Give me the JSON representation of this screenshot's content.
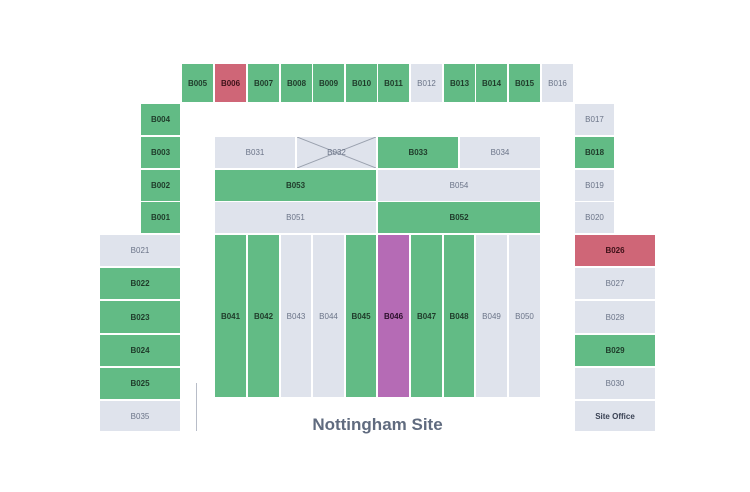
{
  "site": {
    "title": "Nottingham Site"
  },
  "units": [
    {
      "id": "B005",
      "status": "occupied"
    },
    {
      "id": "B006",
      "status": "reserved"
    },
    {
      "id": "B007",
      "status": "occupied"
    },
    {
      "id": "B008",
      "status": "occupied"
    },
    {
      "id": "B009",
      "status": "occupied"
    },
    {
      "id": "B010",
      "status": "occupied"
    },
    {
      "id": "B011",
      "status": "occupied"
    },
    {
      "id": "B012",
      "status": "available"
    },
    {
      "id": "B013",
      "status": "occupied"
    },
    {
      "id": "B014",
      "status": "occupied"
    },
    {
      "id": "B015",
      "status": "occupied"
    },
    {
      "id": "B016",
      "status": "available"
    },
    {
      "id": "B004",
      "status": "occupied"
    },
    {
      "id": "B003",
      "status": "occupied"
    },
    {
      "id": "B002",
      "status": "occupied"
    },
    {
      "id": "B001",
      "status": "occupied"
    },
    {
      "id": "B017",
      "status": "available"
    },
    {
      "id": "B018",
      "status": "occupied"
    },
    {
      "id": "B019",
      "status": "available"
    },
    {
      "id": "B020",
      "status": "available"
    },
    {
      "id": "B031",
      "status": "available"
    },
    {
      "id": "B032",
      "status": "unavailable"
    },
    {
      "id": "B033",
      "status": "occupied"
    },
    {
      "id": "B034",
      "status": "available"
    },
    {
      "id": "B053",
      "status": "occupied"
    },
    {
      "id": "B054",
      "status": "available"
    },
    {
      "id": "B051",
      "status": "available"
    },
    {
      "id": "B052",
      "status": "occupied"
    },
    {
      "id": "B041",
      "status": "occupied"
    },
    {
      "id": "B042",
      "status": "occupied"
    },
    {
      "id": "B043",
      "status": "available"
    },
    {
      "id": "B044",
      "status": "available"
    },
    {
      "id": "B045",
      "status": "occupied"
    },
    {
      "id": "B046",
      "status": "selected"
    },
    {
      "id": "B047",
      "status": "occupied"
    },
    {
      "id": "B048",
      "status": "occupied"
    },
    {
      "id": "B049",
      "status": "available"
    },
    {
      "id": "B050",
      "status": "available"
    },
    {
      "id": "B021",
      "status": "available"
    },
    {
      "id": "B022",
      "status": "occupied"
    },
    {
      "id": "B023",
      "status": "occupied"
    },
    {
      "id": "B024",
      "status": "occupied"
    },
    {
      "id": "B025",
      "status": "occupied"
    },
    {
      "id": "B035",
      "status": "available"
    },
    {
      "id": "B026",
      "status": "reserved"
    },
    {
      "id": "B027",
      "status": "available"
    },
    {
      "id": "B028",
      "status": "available"
    },
    {
      "id": "B029",
      "status": "occupied"
    },
    {
      "id": "B030",
      "status": "available"
    },
    {
      "id": "Site Office",
      "status": "office"
    }
  ]
}
